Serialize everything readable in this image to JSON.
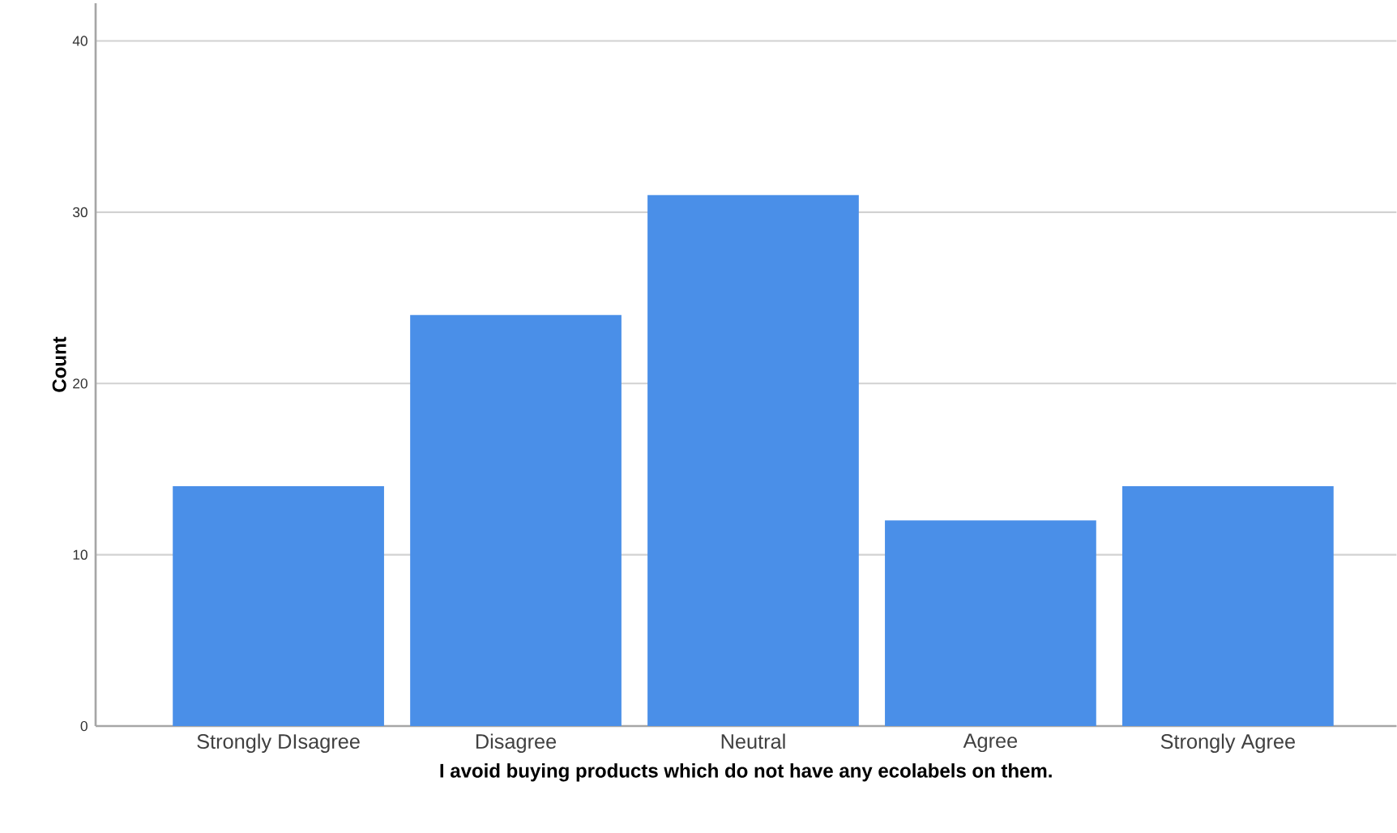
{
  "chart_data": {
    "type": "bar",
    "xlabel": "I avoid buying products which do not have any ecolabels on them.",
    "ylabel": "Count",
    "categories": [
      "Strongly DIsagree",
      "Disagree",
      "Neutral",
      "Agree",
      "Strongly Agree"
    ],
    "values": [
      14,
      24,
      31,
      12,
      14
    ],
    "color": "#4a8fe8",
    "ylim": [
      0,
      42.2
    ],
    "yticks": [
      0,
      10,
      20,
      30,
      40
    ],
    "grid": "y"
  }
}
